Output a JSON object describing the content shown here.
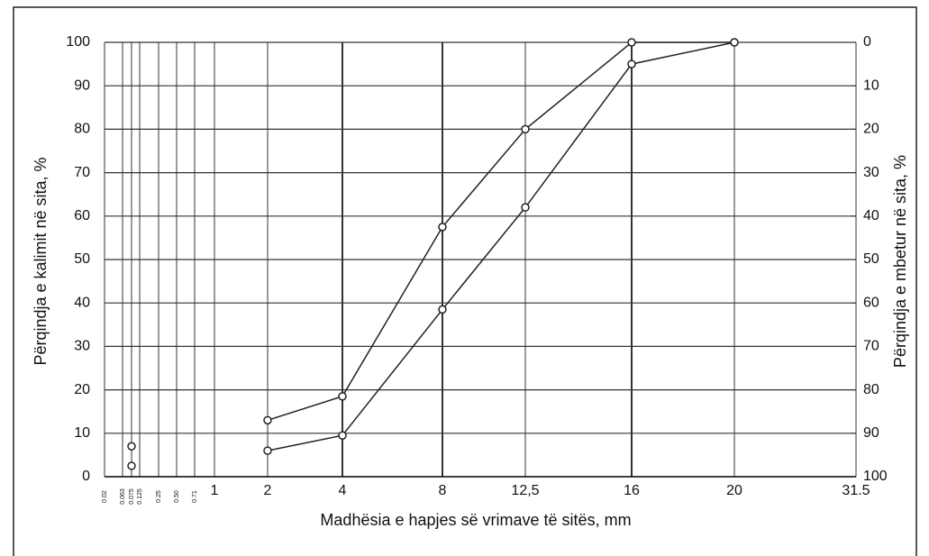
{
  "chart_data": {
    "type": "line",
    "xlabel": "Madhësia e hapjes së vrimave të sitës, mm",
    "ylabel": "Përqindja e kalimit në sita, %",
    "y2label": "Përqindja e mbetur në sita, %",
    "categories": [
      "0.02",
      "0.063",
      "0.075",
      "0.125",
      "0.25",
      "0.50",
      "0.71",
      "1",
      "2",
      "4",
      "8",
      "12,5",
      "16",
      "20",
      "31.5"
    ],
    "series": [
      {
        "color": "#222222",
        "values": [
          null,
          null,
          7,
          null,
          null,
          null,
          null,
          null,
          13,
          18.5,
          57.5,
          80,
          100,
          100,
          null
        ]
      },
      {
        "color": "#222222",
        "values": [
          null,
          null,
          2.5,
          null,
          null,
          null,
          null,
          null,
          6,
          9.5,
          38.5,
          62,
          95,
          100,
          null
        ]
      }
    ],
    "ylim": [
      0,
      100
    ],
    "yticks": [
      0,
      10,
      20,
      30,
      40,
      50,
      60,
      70,
      80,
      90,
      100
    ],
    "y2lim": [
      100,
      0
    ],
    "y2ticks": [
      0,
      10,
      20,
      30,
      40,
      50,
      60,
      70,
      80,
      90,
      100
    ],
    "grid": true
  }
}
